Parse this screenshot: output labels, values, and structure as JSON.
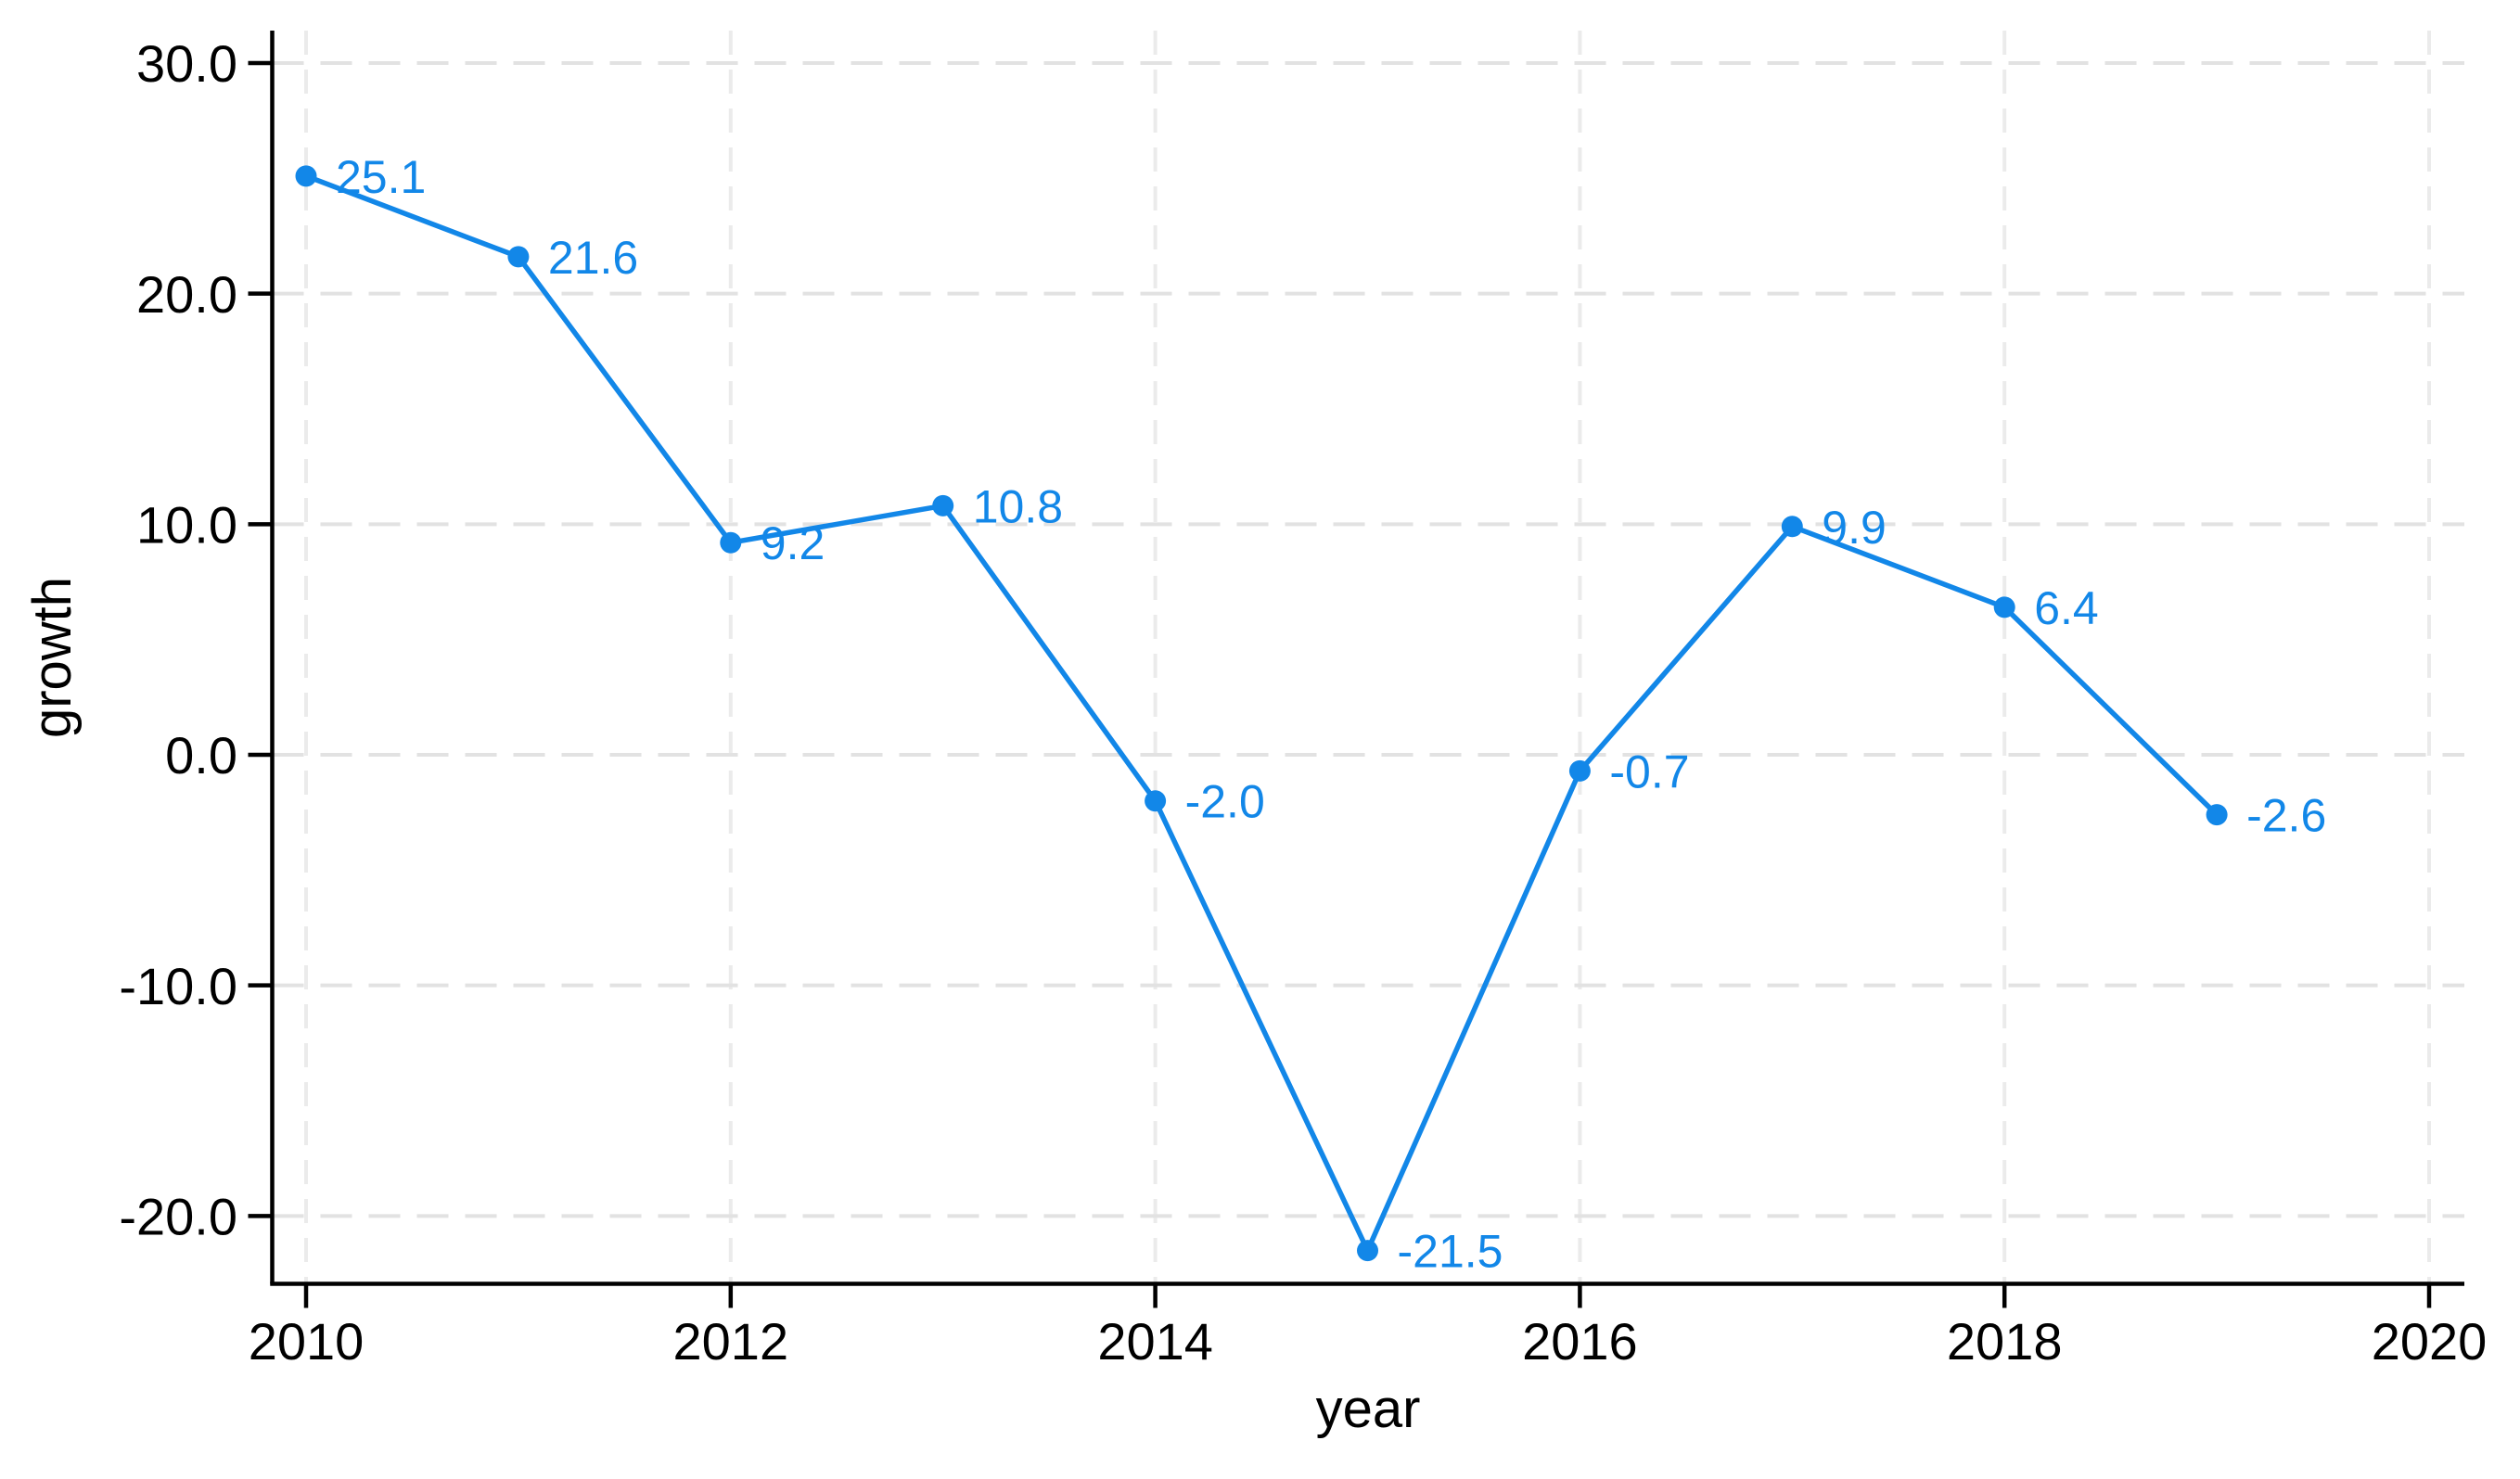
{
  "chart_data": {
    "type": "line",
    "title": "",
    "xlabel": "year",
    "ylabel": "growth",
    "x": [
      2010,
      2011,
      2012,
      2013,
      2014,
      2015,
      2016,
      2017,
      2018,
      2019
    ],
    "series": [
      {
        "name": "growth",
        "values": [
          25.1,
          21.6,
          9.2,
          10.8,
          -2.0,
          -21.5,
          -0.7,
          9.9,
          6.4,
          -2.6
        ]
      }
    ],
    "point_labels": [
      "25.1",
      "21.6",
      "9.2",
      "10.8",
      "-2.0",
      "-21.5",
      "-0.7",
      "9.9",
      "6.4",
      "-2.6"
    ],
    "x_ticks": [
      {
        "v": 2010,
        "label": "2010"
      },
      {
        "v": 2012,
        "label": "2012"
      },
      {
        "v": 2014,
        "label": "2014"
      },
      {
        "v": 2016,
        "label": "2016"
      },
      {
        "v": 2018,
        "label": "2018"
      },
      {
        "v": 2020,
        "label": "2020"
      }
    ],
    "y_ticks": [
      {
        "v": 30,
        "label": "30.0"
      },
      {
        "v": 20,
        "label": "20.0"
      },
      {
        "v": 10,
        "label": "10.0"
      },
      {
        "v": 0,
        "label": "0.0"
      },
      {
        "v": -10,
        "label": "-10.0"
      },
      {
        "v": -20,
        "label": "-20.0"
      }
    ],
    "xlim": [
      2009.8405,
      2020.166
    ],
    "ylim": [
      -22.943,
      31.407
    ],
    "grid": {
      "horizontal": true,
      "vertical": true,
      "style": "dashed"
    },
    "legend": "none",
    "colors": {
      "line": "#1287E8",
      "marker": "#1287E8",
      "point_label": "#1287E8",
      "axis": "#000000",
      "tick_text": "#000000",
      "grid_horizontal": "#e2e2e2",
      "grid_vertical": "#ebebeb",
      "background": "#ffffff"
    }
  }
}
